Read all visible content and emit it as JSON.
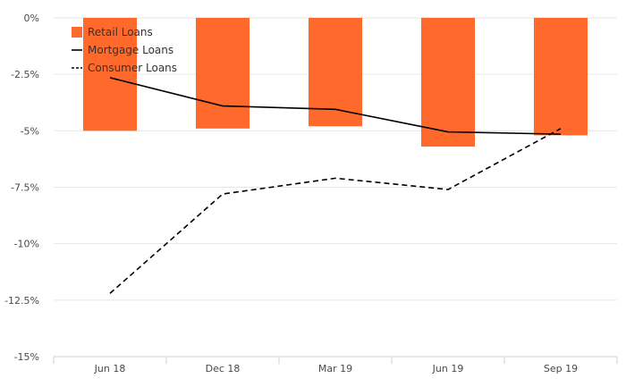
{
  "chart_data": {
    "type": "bar",
    "title": "",
    "xlabel": "",
    "ylabel": "",
    "categories": [
      "Jun 18",
      "Dec 18",
      "Mar 19",
      "Jun 19",
      "Sep 19"
    ],
    "ylim": [
      -15,
      0
    ],
    "yticks": [
      0,
      -2.5,
      -5,
      -7.5,
      -10,
      -12.5,
      -15
    ],
    "ytick_labels": [
      "0%",
      "-2.5%",
      "-5%",
      "-7.5%",
      "-10%",
      "-12.5%",
      "-15%"
    ],
    "grid": true,
    "legend_position": "top-left",
    "series": [
      {
        "name": "Retail Loans",
        "kind": "bar",
        "color": "#ff6a2c",
        "values": [
          -5.0,
          -4.9,
          -4.8,
          -5.7,
          -5.2
        ]
      },
      {
        "name": "Mortgage Loans",
        "kind": "line",
        "style": "solid",
        "color": "#000000",
        "values": [
          -2.65,
          -3.9,
          -4.05,
          -5.05,
          -5.15
        ]
      },
      {
        "name": "Consumer Loans",
        "kind": "line",
        "style": "dashed",
        "color": "#000000",
        "values": [
          -12.2,
          -7.8,
          -7.1,
          -7.6,
          -4.9
        ]
      }
    ]
  }
}
